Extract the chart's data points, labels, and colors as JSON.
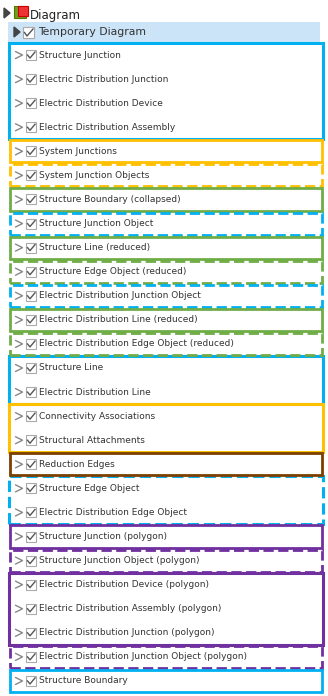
{
  "bg_color": "#ffffff",
  "header_bg": "#cce4f7",
  "title": "Diagram",
  "temp_label": "Temporary Diagram",
  "rows": [
    {
      "label": "Structure Junction",
      "border": null,
      "group_id": 0
    },
    {
      "label": "Electric Distribution Junction",
      "border": null,
      "group_id": 0
    },
    {
      "label": "Electric Distribution Device",
      "border": null,
      "group_id": 0
    },
    {
      "label": "Electric Distribution Assembly",
      "border": null,
      "group_id": 0
    },
    {
      "label": "System Junctions",
      "border": {
        "color": "#ffc000",
        "style": "solid"
      },
      "group_id": null
    },
    {
      "label": "System Junction Objects",
      "border": {
        "color": "#ffc000",
        "style": "dashed"
      },
      "group_id": null
    },
    {
      "label": "Structure Boundary (collapsed)",
      "border": {
        "color": "#70ad47",
        "style": "solid"
      },
      "group_id": null
    },
    {
      "label": "Structure Junction Object",
      "border": {
        "color": "#00b0f0",
        "style": "dashed"
      },
      "group_id": null
    },
    {
      "label": "Structure Line (reduced)",
      "border": {
        "color": "#70ad47",
        "style": "solid"
      },
      "group_id": null
    },
    {
      "label": "Structure Edge Object (reduced)",
      "border": {
        "color": "#70ad47",
        "style": "dashed"
      },
      "group_id": null
    },
    {
      "label": "Electric Distribution Junction Object",
      "border": {
        "color": "#00b0f0",
        "style": "dashed"
      },
      "group_id": null
    },
    {
      "label": "Electric Distribution Line (reduced)",
      "border": {
        "color": "#70ad47",
        "style": "solid"
      },
      "group_id": null
    },
    {
      "label": "Electric Distribution Edge Object (reduced)",
      "border": {
        "color": "#70ad47",
        "style": "dashed"
      },
      "group_id": null
    },
    {
      "label": "Structure Line",
      "border": null,
      "group_id": 1
    },
    {
      "label": "Electric Distribution Line",
      "border": null,
      "group_id": 1
    },
    {
      "label": "Connectivity Associations",
      "border": null,
      "group_id": 2
    },
    {
      "label": "Structural Attachments",
      "border": null,
      "group_id": 2
    },
    {
      "label": "Reduction Edges",
      "border": {
        "color": "#7b3f00",
        "style": "solid"
      },
      "group_id": null
    },
    {
      "label": "Structure Edge Object",
      "border": null,
      "group_id": 3
    },
    {
      "label": "Electric Distribution Edge Object",
      "border": null,
      "group_id": 3
    },
    {
      "label": "Structure Junction (polygon)",
      "border": {
        "color": "#7030a0",
        "style": "solid"
      },
      "group_id": null
    },
    {
      "label": "Structure Junction Object (polygon)",
      "border": {
        "color": "#7030a0",
        "style": "dashed"
      },
      "group_id": null
    },
    {
      "label": "Electric Distribution Device (polygon)",
      "border": null,
      "group_id": 4
    },
    {
      "label": "Electric Distribution Assembly (polygon)",
      "border": null,
      "group_id": 4
    },
    {
      "label": "Electric Distribution Junction (polygon)",
      "border": null,
      "group_id": 4
    },
    {
      "label": "Electric Distribution Junction Object (polygon)",
      "border": {
        "color": "#7030a0",
        "style": "dashed"
      },
      "group_id": null
    },
    {
      "label": "Structure Boundary",
      "border": {
        "color": "#00b0f0",
        "style": "solid"
      },
      "group_id": null
    }
  ],
  "groups": [
    {
      "rows": [
        0,
        3
      ],
      "color": "#00b0f0",
      "style": "solid"
    },
    {
      "rows": [
        13,
        14
      ],
      "color": "#00b0f0",
      "style": "solid"
    },
    {
      "rows": [
        15,
        16
      ],
      "color": "#ffc000",
      "style": "solid"
    },
    {
      "rows": [
        18,
        19
      ],
      "color": "#00b0f0",
      "style": "dashed"
    },
    {
      "rows": [
        22,
        24
      ],
      "color": "#7030a0",
      "style": "solid"
    }
  ]
}
